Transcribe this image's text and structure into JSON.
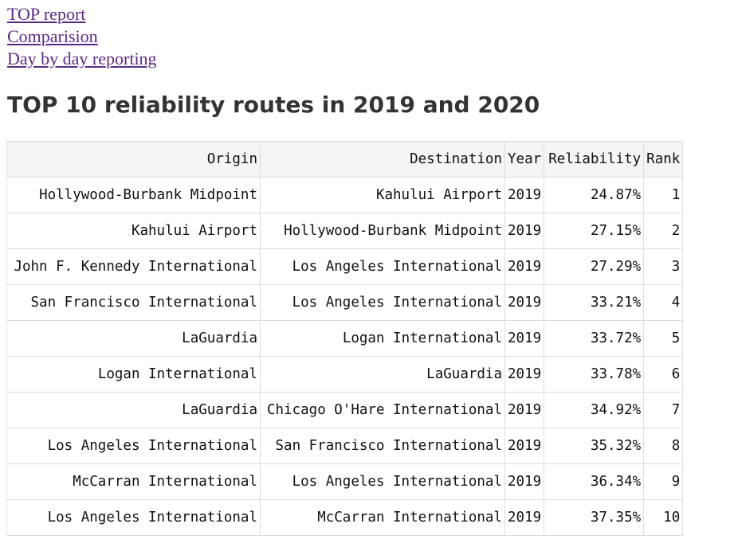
{
  "nav": {
    "links": [
      "TOP report",
      "Comparision",
      "Day by day reporting"
    ]
  },
  "page": {
    "title": "TOP 10 reliability routes in 2019 and 2020"
  },
  "table": {
    "headers": [
      "Origin",
      "Destination",
      "Year",
      "Reliability",
      "Rank"
    ],
    "rows": [
      [
        "Hollywood-Burbank Midpoint",
        "Kahului Airport",
        "2019",
        "24.87%",
        "1"
      ],
      [
        "Kahului Airport",
        "Hollywood-Burbank Midpoint",
        "2019",
        "27.15%",
        "2"
      ],
      [
        "John F. Kennedy International",
        "Los Angeles International",
        "2019",
        "27.29%",
        "3"
      ],
      [
        "San Francisco International",
        "Los Angeles International",
        "2019",
        "33.21%",
        "4"
      ],
      [
        "LaGuardia",
        "Logan International",
        "2019",
        "33.72%",
        "5"
      ],
      [
        "Logan International",
        "LaGuardia",
        "2019",
        "33.78%",
        "6"
      ],
      [
        "LaGuardia",
        "Chicago O'Hare International",
        "2019",
        "34.92%",
        "7"
      ],
      [
        "Los Angeles International",
        "San Francisco International",
        "2019",
        "35.32%",
        "8"
      ],
      [
        "McCarran International",
        "Los Angeles International",
        "2019",
        "36.34%",
        "9"
      ],
      [
        "Los Angeles International",
        "McCarran International",
        "2019",
        "37.35%",
        "10"
      ]
    ]
  },
  "colors": {
    "link": "#5b2a86",
    "title": "#333333",
    "header_bg": "#f5f5f5",
    "border": "#dddddd"
  }
}
